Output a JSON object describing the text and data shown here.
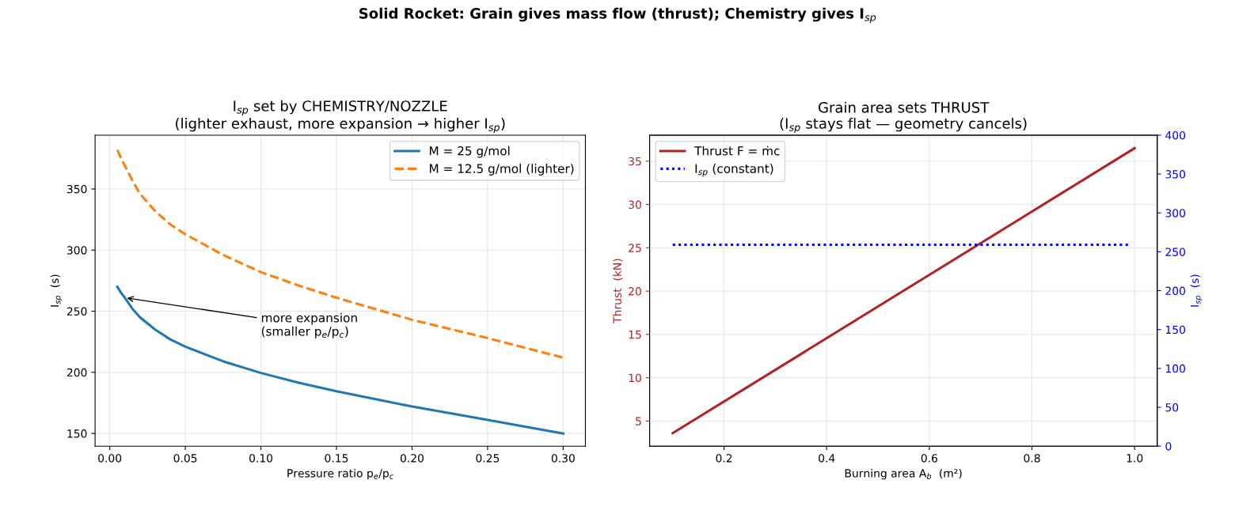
{
  "chart_data": [
    {
      "type": "line",
      "title": "I$_{sp}$ set by CHEMISTRY/NOZZLE\n(lighter exhaust, more expansion → higher I$_{sp}$)",
      "xlabel": "Pressure ratio p$_{e}$/p$_{c}$",
      "ylabel": "I$_{sp}$  (s)",
      "x": [
        0.005,
        0.0075,
        0.01,
        0.015,
        0.02,
        0.03,
        0.04,
        0.05,
        0.075,
        0.1,
        0.125,
        0.15,
        0.2,
        0.25,
        0.3
      ],
      "series": [
        {
          "name": "M = 25 g/mol",
          "color": "#1f77b4",
          "line_style": "solid",
          "values": [
            270,
            265,
            261,
            252,
            245,
            235,
            227,
            221,
            209,
            199.5,
            191.5,
            184.5,
            172,
            161,
            150
          ]
        },
        {
          "name": "M = 12.5 g/mol (lighter)",
          "color": "#ff7f0e",
          "line_style": "dashed",
          "values": [
            382,
            375,
            369,
            357,
            346,
            332,
            321,
            313,
            296,
            282,
            271,
            261,
            243,
            228,
            212
          ]
        }
      ],
      "xlim": [
        -0.0097,
        0.3147
      ],
      "ylim": [
        139.6,
        394
      ],
      "xticks": [
        {
          "value": 0,
          "label": "0.00"
        },
        {
          "value": 0.05,
          "label": "0.05"
        },
        {
          "value": 0.1,
          "label": "0.10"
        },
        {
          "value": 0.15,
          "label": "0.15"
        },
        {
          "value": 0.2,
          "label": "0.20"
        },
        {
          "value": 0.25,
          "label": "0.25"
        },
        {
          "value": 0.3,
          "label": "0.30"
        }
      ],
      "yticks": [
        150,
        200,
        250,
        300,
        350
      ],
      "grid": true,
      "legend": "top right",
      "annotations": [
        "Solid Rocket: Grain gives mass flow (thrust); Chemistry gives I$_{sp}$",
        {
          "text": "more expansion\n(smaller p$_{e}$/p$_{c}$)",
          "x": 0.01,
          "y": 261
        }
      ]
    },
    {
      "type": "line",
      "title": "Grain area sets THRUST\n(I$_{sp}$ stays flat — geometry cancels)",
      "xlabel": "Burning area A$_{b}$  (m²)",
      "ylabel": "Thrust  (kN)",
      "y2label": "I$_{sp}$  (s)",
      "x": [
        0.1,
        1
      ],
      "series": [
        {
          "name": "Thrust F = ṁc",
          "color": "#b22222",
          "line_style": "solid",
          "values": [
            3.6,
            36.5
          ]
        },
        {
          "name": "I$_{sp}$ (constant)",
          "color": "#0000ff",
          "line_style": "dotted",
          "axis": "y2",
          "x": [
            0.1,
            0.99
          ],
          "values": [
            259,
            259
          ]
        }
      ],
      "xlim": [
        0.055,
        1.044
      ],
      "ylim": [
        2.1,
        38
      ],
      "y2lim": [
        0,
        400
      ],
      "xticks": [
        0.2,
        0.4,
        0.6,
        0.8,
        {
          "value": 1,
          "label": "1.0"
        }
      ],
      "yticks": [
        5,
        10,
        15,
        20,
        25,
        30,
        35
      ],
      "y2ticks": [
        0,
        50,
        100,
        150,
        200,
        250,
        300,
        350,
        400
      ],
      "grid": true,
      "legend": "top left"
    }
  ]
}
